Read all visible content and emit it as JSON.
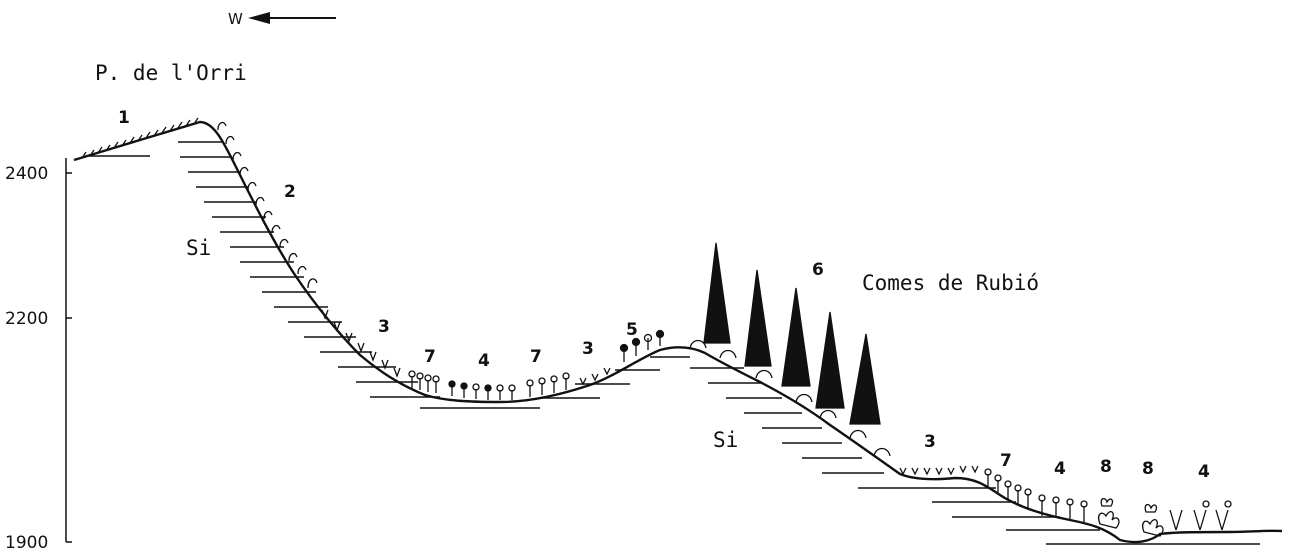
{
  "orientation": {
    "label": "W",
    "arrow": "left-arrow-icon"
  },
  "places": {
    "peak": "P. de l'Orri",
    "slope": "Comes de Rubió"
  },
  "substrate": {
    "upper": "Si",
    "lower": "Si"
  },
  "axis": {
    "ticks": [
      "2400",
      "2200",
      "1900"
    ]
  },
  "zones": [
    "1",
    "2",
    "3",
    "7",
    "4",
    "7",
    "3",
    "5",
    "6",
    "3",
    "7",
    "4",
    "8",
    "8",
    "4"
  ]
}
